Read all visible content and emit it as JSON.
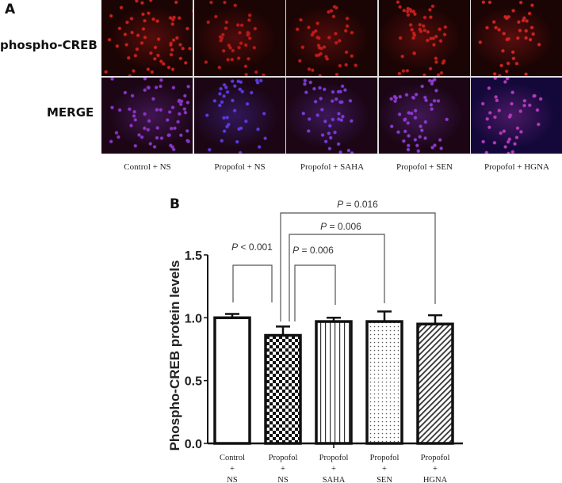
{
  "panel_a": {
    "letter": "A",
    "row_labels": [
      "phospho-CREB",
      "MERGE"
    ],
    "columns": [
      {
        "label": "Control + NS",
        "top_color": "#c8201a",
        "merge_color": "#8a34c8",
        "density": 0.9
      },
      {
        "label": "Propofol + NS",
        "top_color": "#b81a18",
        "merge_color": "#5a3ae0",
        "density": 0.55
      },
      {
        "label": "Propofol + SAHA",
        "top_color": "#c01c18",
        "merge_color": "#7a3ad8",
        "density": 0.6
      },
      {
        "label": "Propofol + SEN",
        "top_color": "#c41e1a",
        "merge_color": "#8a3ad0",
        "density": 0.7
      },
      {
        "label": "Propofol + HGNA",
        "top_color": "#d02420",
        "merge_color": "#b43ab8",
        "density": 0.55
      }
    ]
  },
  "panel_b": {
    "letter": "B"
  },
  "chart_data": {
    "type": "bar",
    "title": "",
    "xlabel": "",
    "ylabel": "Phospho-CREB protein  levels",
    "ylim": [
      0,
      1.5
    ],
    "yticks": [
      "0.0",
      "0.5",
      "1.0",
      "1.5"
    ],
    "grid": false,
    "categories": [
      "Control + NS",
      "Propofol + NS",
      "Propofol + SAHA",
      "Propofol + SEN",
      "Propofol + HGNA"
    ],
    "category_lines": [
      [
        "Control",
        "+",
        "NS"
      ],
      [
        "Propofol",
        "+",
        "NS"
      ],
      [
        "Propofol",
        "+",
        "SAHA"
      ],
      [
        "Propofol",
        "+",
        "SEN"
      ],
      [
        "Propofol",
        "+",
        "HGNA"
      ]
    ],
    "values": [
      1.0,
      0.86,
      0.97,
      0.97,
      0.95
    ],
    "error_upper": [
      0.03,
      0.07,
      0.03,
      0.08,
      0.07
    ],
    "patterns": [
      "empty",
      "checkerboard",
      "vertical-lines",
      "dots",
      "diagonal-lines"
    ],
    "annotations": [
      {
        "text_prefix": "P",
        "text": " < 0.001",
        "from": 0,
        "to": 1,
        "level": 1.35
      },
      {
        "text_prefix": "P",
        "text": " = 0.006",
        "from": 1,
        "to": 2,
        "level": 1.35
      },
      {
        "text_prefix": "P",
        "text": " = 0.006",
        "from": 1,
        "to": 3,
        "level": 1.56
      },
      {
        "text_prefix": "P",
        "text": " = 0.016",
        "from": 1,
        "to": 4,
        "level": 1.71
      }
    ]
  }
}
